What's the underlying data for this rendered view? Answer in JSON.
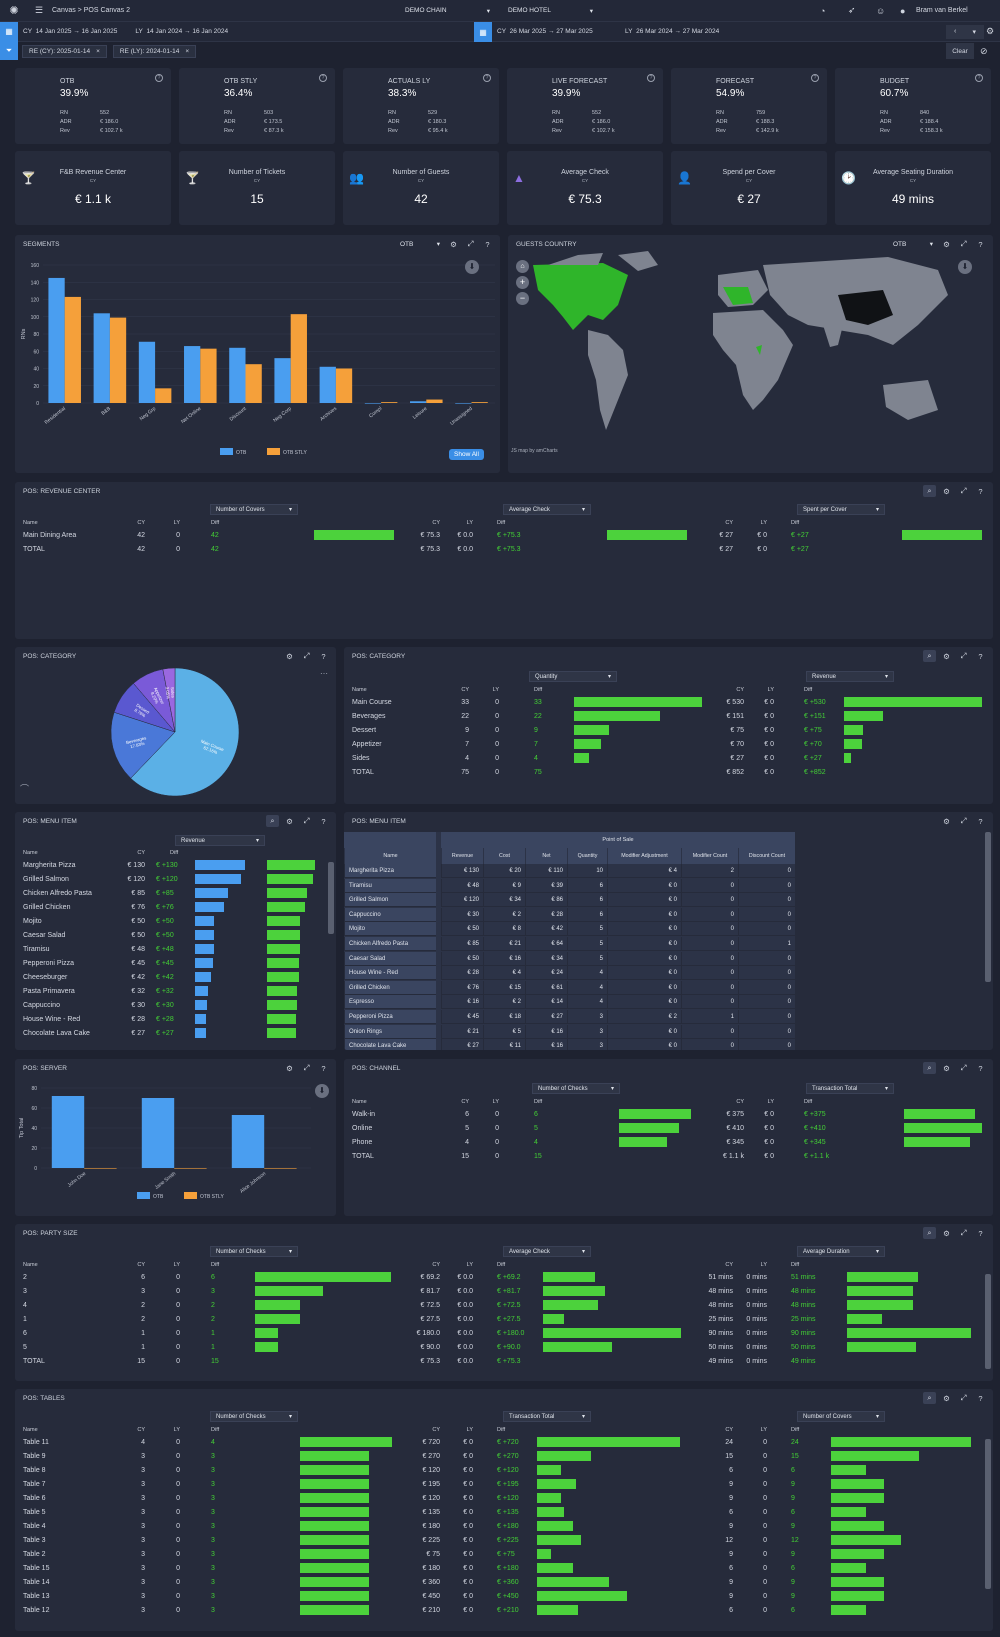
{
  "topbar": {
    "breadcrumb": "Canvas",
    "page": "POS Canvas 2",
    "chain": "DEMO CHAIN",
    "hotel": "DEMO HOTEL",
    "user": "Bram van Berkel"
  },
  "datebar": {
    "cy_label": "CY",
    "cy_range": "14 Jan 2025 → 16 Jan 2025",
    "ly_label": "LY",
    "ly_range": "14 Jan 2024 → 16 Jan 2024",
    "cy2_label": "CY",
    "cy2_range": "26 Mar 2025 → 27 Mar 2025",
    "ly2_label": "LY",
    "ly2_range": "26 Mar 2024 → 27 Mar 2024"
  },
  "filters": {
    "chip1": "RE (CY): 2025-01-14",
    "chip2": "RE (LY): 2024-01-14",
    "clear": "Clear"
  },
  "kpis": [
    {
      "title": "OTB",
      "value": "39.9%",
      "rn": "552",
      "adr": "€ 186.0",
      "rev": "€ 102.7 k"
    },
    {
      "title": "OTB STLY",
      "value": "36.4%",
      "rn": "503",
      "adr": "€ 173.5",
      "rev": "€ 87.3 k"
    },
    {
      "title": "ACTUALS LY",
      "value": "38.3%",
      "rn": "529",
      "adr": "€ 180.3",
      "rev": "€ 95.4 k"
    },
    {
      "title": "LIVE FORECAST",
      "value": "39.9%",
      "rn": "552",
      "adr": "€ 186.0",
      "rev": "€ 102.7 k"
    },
    {
      "title": "FORECAST",
      "value": "54.9%",
      "rn": "759",
      "adr": "€ 188.3",
      "rev": "€ 142.9 k"
    },
    {
      "title": "BUDGET",
      "value": "60.7%",
      "rn": "840",
      "adr": "€ 188.4",
      "rev": "€ 158.3 k"
    }
  ],
  "kpi_labels": {
    "rn": "RN",
    "adr": "ADR",
    "rev": "Rev",
    "q": "?"
  },
  "kpis2": [
    {
      "title": "F&B Revenue Center",
      "sub": "CY",
      "value": "€ 1.1 k",
      "icon": "🍸"
    },
    {
      "title": "Number of Tickets",
      "sub": "CY",
      "value": "15",
      "icon": "🍸"
    },
    {
      "title": "Number of Guests",
      "sub": "CY",
      "value": "42",
      "icon": "👥"
    },
    {
      "title": "Average Check",
      "sub": "CY",
      "value": "€ 75.3",
      "icon": "▲"
    },
    {
      "title": "Spend per Cover",
      "sub": "CY",
      "value": "€ 27",
      "icon": "👤"
    },
    {
      "title": "Average Seating Duration",
      "sub": "CY",
      "value": "49 mins",
      "icon": "🕑"
    }
  ],
  "segments": {
    "title": "SEGMENTS",
    "selector": "OTB",
    "show_all": "Show All",
    "ylabel": "RNs"
  },
  "chart_data": [
    {
      "type": "bar",
      "title": "SEGMENTS",
      "ylabel": "RNs",
      "ylim": [
        0,
        160
      ],
      "yticks": [
        0,
        20,
        40,
        60,
        80,
        100,
        120,
        140,
        160
      ],
      "categories": [
        "Residential",
        "B&B",
        "Neg Grp",
        "Net Online",
        "Discount",
        "Neg Corp",
        "Archives",
        "Compl",
        "Leisure",
        "Unassigned"
      ],
      "series": [
        {
          "name": "OTB",
          "color": "#4a9ef0",
          "values": [
            145,
            104,
            71,
            66,
            64,
            52,
            42,
            0,
            2,
            0
          ]
        },
        {
          "name": "OTB STLY",
          "color": "#f5a03a",
          "values": [
            123,
            99,
            17,
            63,
            45,
            103,
            40,
            1,
            4,
            1
          ]
        }
      ]
    },
    {
      "type": "bar",
      "title": "POS: SERVER",
      "ylabel": "Tip Total",
      "ylim": [
        0,
        80
      ],
      "yticks": [
        0,
        20,
        40,
        60,
        80
      ],
      "categories": [
        "John Doe",
        "Jane Smith",
        "Alice Johnson"
      ],
      "series": [
        {
          "name": "OTB",
          "color": "#4a9ef0",
          "values": [
            72,
            70,
            53
          ]
        },
        {
          "name": "OTB STLY",
          "color": "#f5a03a",
          "values": [
            0,
            0,
            0
          ]
        }
      ]
    },
    {
      "type": "pie",
      "title": "POS: CATEGORY",
      "slices": [
        {
          "label": "Main Course",
          "value": "62.16%",
          "v": 62.16,
          "color": "#5bb0e6"
        },
        {
          "label": "Beverages",
          "value": "17.83%",
          "v": 17.83,
          "color": "#4a78d8"
        },
        {
          "label": "Dessert",
          "value": "8.76%",
          "v": 8.76,
          "color": "#5a58d0"
        },
        {
          "label": "Appetizer",
          "value": "8.20%",
          "v": 8.2,
          "color": "#7a5ad8"
        },
        {
          "label": "Sides",
          "value": "3.05%",
          "v": 3.05,
          "color": "#9a68e0"
        }
      ]
    }
  ],
  "guests": {
    "title": "GUESTS COUNTRY",
    "selector": "OTB",
    "credit": "JS map by amCharts"
  },
  "revcenter": {
    "title": "POS: REVENUE CENTER",
    "dd1": "Number of Covers",
    "dd2": "Average Check",
    "dd3": "Spent per Cover",
    "rows": [
      {
        "name": "Main Dining Area",
        "cy": "42",
        "ly": "0",
        "diff": "42",
        "cy2": "€ 75.3",
        "ly2": "€ 0.0",
        "diff2": "€ +75.3",
        "cy3": "€ 27",
        "ly3": "€ 0",
        "diff3": "€ +27"
      },
      {
        "name": "TOTAL",
        "cy": "42",
        "ly": "0",
        "diff": "42",
        "cy2": "€ 75.3",
        "ly2": "€ 0.0",
        "diff2": "€ +75.3",
        "cy3": "€ 27",
        "ly3": "€ 0",
        "diff3": "€ +27"
      }
    ]
  },
  "cols": {
    "name": "Name",
    "cy": "CY",
    "ly": "LY",
    "diff": "Diff"
  },
  "catpie": {
    "title": "POS: CATEGORY"
  },
  "cattable": {
    "title": "POS: CATEGORY",
    "dd1": "Quantity",
    "dd2": "Revenue",
    "rows": [
      {
        "name": "Main Course",
        "cy": "33",
        "ly": "0",
        "diff": "33",
        "cy2": "€ 530",
        "ly2": "€ 0",
        "diff2": "€ +530",
        "b1": 1,
        "b2": 1
      },
      {
        "name": "Beverages",
        "cy": "22",
        "ly": "0",
        "diff": "22",
        "cy2": "€ 151",
        "ly2": "€ 0",
        "diff2": "€ +151",
        "b1": 0.67,
        "b2": 0.28
      },
      {
        "name": "Dessert",
        "cy": "9",
        "ly": "0",
        "diff": "9",
        "cy2": "€ 75",
        "ly2": "€ 0",
        "diff2": "€ +75",
        "b1": 0.27,
        "b2": 0.14
      },
      {
        "name": "Appetizer",
        "cy": "7",
        "ly": "0",
        "diff": "7",
        "cy2": "€ 70",
        "ly2": "€ 0",
        "diff2": "€ +70",
        "b1": 0.21,
        "b2": 0.13
      },
      {
        "name": "Sides",
        "cy": "4",
        "ly": "0",
        "diff": "4",
        "cy2": "€ 27",
        "ly2": "€ 0",
        "diff2": "€ +27",
        "b1": 0.12,
        "b2": 0.05
      },
      {
        "name": "TOTAL",
        "cy": "75",
        "ly": "0",
        "diff": "75",
        "cy2": "€ 852",
        "ly2": "€ 0",
        "diff2": "€ +852",
        "b1": 0,
        "b2": 0
      }
    ]
  },
  "menuitem": {
    "title": "POS: MENU ITEM",
    "dd": "Revenue",
    "rows": [
      {
        "name": "Margherita Pizza",
        "cy": "€ 130",
        "diff": "€ +130",
        "b": 1
      },
      {
        "name": "Grilled Salmon",
        "cy": "€ 120",
        "diff": "€ +120",
        "b": 0.92
      },
      {
        "name": "Chicken Alfredo Pasta",
        "cy": "€ 85",
        "diff": "€ +85",
        "b": 0.65
      },
      {
        "name": "Grilled Chicken",
        "cy": "€ 76",
        "diff": "€ +76",
        "b": 0.58
      },
      {
        "name": "Mojito",
        "cy": "€ 50",
        "diff": "€ +50",
        "b": 0.38
      },
      {
        "name": "Caesar Salad",
        "cy": "€ 50",
        "diff": "€ +50",
        "b": 0.38
      },
      {
        "name": "Tiramisu",
        "cy": "€ 48",
        "diff": "€ +48",
        "b": 0.37
      },
      {
        "name": "Pepperoni Pizza",
        "cy": "€ 45",
        "diff": "€ +45",
        "b": 0.35
      },
      {
        "name": "Cheeseburger",
        "cy": "€ 42",
        "diff": "€ +42",
        "b": 0.32
      },
      {
        "name": "Pasta Primavera",
        "cy": "€ 32",
        "diff": "€ +32",
        "b": 0.25
      },
      {
        "name": "Cappuccino",
        "cy": "€ 30",
        "diff": "€ +30",
        "b": 0.23
      },
      {
        "name": "House Wine - Red",
        "cy": "€ 28",
        "diff": "€ +28",
        "b": 0.22
      },
      {
        "name": "Chocolate Lava Cake",
        "cy": "€ 27",
        "diff": "€ +27",
        "b": 0.21
      }
    ]
  },
  "menupivot": {
    "title": "POS: MENU ITEM",
    "group": "Point of Sale",
    "headers": [
      "Name",
      "Revenue",
      "Cost",
      "Net",
      "Quantity",
      "Modifier Adjustment",
      "Modifier Count",
      "Discount Count"
    ],
    "rows": [
      [
        "Margherita Pizza",
        "€ 130",
        "€ 20",
        "€ 110",
        "10",
        "€ 4",
        "2",
        "0"
      ],
      [
        "Tiramisu",
        "€ 48",
        "€ 9",
        "€ 39",
        "6",
        "€ 0",
        "0",
        "0"
      ],
      [
        "Grilled Salmon",
        "€ 120",
        "€ 34",
        "€ 86",
        "6",
        "€ 0",
        "0",
        "0"
      ],
      [
        "Cappuccino",
        "€ 30",
        "€ 2",
        "€ 28",
        "6",
        "€ 0",
        "0",
        "0"
      ],
      [
        "Mojito",
        "€ 50",
        "€ 8",
        "€ 42",
        "5",
        "€ 0",
        "0",
        "0"
      ],
      [
        "Chicken Alfredo Pasta",
        "€ 85",
        "€ 21",
        "€ 64",
        "5",
        "€ 0",
        "0",
        "1"
      ],
      [
        "Caesar Salad",
        "€ 50",
        "€ 16",
        "€ 34",
        "5",
        "€ 0",
        "0",
        "0"
      ],
      [
        "House Wine - Red",
        "€ 28",
        "€ 4",
        "€ 24",
        "4",
        "€ 0",
        "0",
        "0"
      ],
      [
        "Grilled Chicken",
        "€ 76",
        "€ 15",
        "€ 61",
        "4",
        "€ 0",
        "0",
        "0"
      ],
      [
        "Espresso",
        "€ 16",
        "€ 2",
        "€ 14",
        "4",
        "€ 0",
        "0",
        "0"
      ],
      [
        "Pepperoni Pizza",
        "€ 45",
        "€ 18",
        "€ 27",
        "3",
        "€ 2",
        "1",
        "0"
      ],
      [
        "Onion Rings",
        "€ 21",
        "€ 5",
        "€ 16",
        "3",
        "€ 0",
        "0",
        "0"
      ],
      [
        "Chocolate Lava Cake",
        "€ 27",
        "€ 11",
        "€ 16",
        "3",
        "€ 0",
        "0",
        "0"
      ]
    ]
  },
  "server": {
    "title": "POS: SERVER",
    "ylabel": "Tip Total"
  },
  "channel": {
    "title": "POS: CHANNEL",
    "dd1": "Number of Checks",
    "dd2": "Transaction Total",
    "rows": [
      {
        "name": "Walk-in",
        "cy": "6",
        "ly": "0",
        "diff": "6",
        "cy2": "€ 375",
        "ly2": "€ 0",
        "diff2": "€ +375",
        "b1": 1,
        "b2": 0.91
      },
      {
        "name": "Online",
        "cy": "5",
        "ly": "0",
        "diff": "5",
        "cy2": "€ 410",
        "ly2": "€ 0",
        "diff2": "€ +410",
        "b1": 0.83,
        "b2": 1
      },
      {
        "name": "Phone",
        "cy": "4",
        "ly": "0",
        "diff": "4",
        "cy2": "€ 345",
        "ly2": "€ 0",
        "diff2": "€ +345",
        "b1": 0.67,
        "b2": 0.84
      },
      {
        "name": "TOTAL",
        "cy": "15",
        "ly": "0",
        "diff": "15",
        "cy2": "€ 1.1 k",
        "ly2": "€ 0",
        "diff2": "€ +1.1 k",
        "b1": 0,
        "b2": 0
      }
    ]
  },
  "party": {
    "title": "POS: PARTY SIZE",
    "dd1": "Number of Checks",
    "dd2": "Average Check",
    "dd3": "Average Duration",
    "rows": [
      {
        "name": "2",
        "cy": "6",
        "ly": "0",
        "diff": "6",
        "cy2": "€ 69.2",
        "ly2": "€ 0.0",
        "diff2": "€ +69.2",
        "cy3": "51 mins",
        "ly3": "0 mins",
        "diff3": "51 mins",
        "b1": 1,
        "b2": 0.38,
        "b3": 0.57
      },
      {
        "name": "3",
        "cy": "3",
        "ly": "0",
        "diff": "3",
        "cy2": "€ 81.7",
        "ly2": "€ 0.0",
        "diff2": "€ +81.7",
        "cy3": "48 mins",
        "ly3": "0 mins",
        "diff3": "48 mins",
        "b1": 0.5,
        "b2": 0.45,
        "b3": 0.53
      },
      {
        "name": "4",
        "cy": "2",
        "ly": "0",
        "diff": "2",
        "cy2": "€ 72.5",
        "ly2": "€ 0.0",
        "diff2": "€ +72.5",
        "cy3": "48 mins",
        "ly3": "0 mins",
        "diff3": "48 mins",
        "b1": 0.33,
        "b2": 0.4,
        "b3": 0.53
      },
      {
        "name": "1",
        "cy": "2",
        "ly": "0",
        "diff": "2",
        "cy2": "€ 27.5",
        "ly2": "€ 0.0",
        "diff2": "€ +27.5",
        "cy3": "25 mins",
        "ly3": "0 mins",
        "diff3": "25 mins",
        "b1": 0.33,
        "b2": 0.15,
        "b3": 0.28
      },
      {
        "name": "6",
        "cy": "1",
        "ly": "0",
        "diff": "1",
        "cy2": "€ 180.0",
        "ly2": "€ 0.0",
        "diff2": "€ +180.0",
        "cy3": "90 mins",
        "ly3": "0 mins",
        "diff3": "90 mins",
        "b1": 0.17,
        "b2": 1,
        "b3": 1
      },
      {
        "name": "5",
        "cy": "1",
        "ly": "0",
        "diff": "1",
        "cy2": "€ 90.0",
        "ly2": "€ 0.0",
        "diff2": "€ +90.0",
        "cy3": "50 mins",
        "ly3": "0 mins",
        "diff3": "50 mins",
        "b1": 0.17,
        "b2": 0.5,
        "b3": 0.56
      },
      {
        "name": "TOTAL",
        "cy": "15",
        "ly": "0",
        "diff": "15",
        "cy2": "€ 75.3",
        "ly2": "€ 0.0",
        "diff2": "€ +75.3",
        "cy3": "49 mins",
        "ly3": "0 mins",
        "diff3": "49 mins",
        "b1": 0,
        "b2": 0,
        "b3": 0
      }
    ]
  },
  "tables": {
    "title": "POS: TABLES",
    "dd1": "Number of Checks",
    "dd2": "Transaction Total",
    "dd3": "Number of Covers",
    "rows": [
      {
        "name": "Table 11",
        "cy": "4",
        "ly": "0",
        "diff": "4",
        "cy2": "€ 720",
        "ly2": "€ 0",
        "diff2": "€ +720",
        "cy3": "24",
        "ly3": "0",
        "diff3": "24",
        "b1": 1,
        "b2": 1,
        "b3": 1
      },
      {
        "name": "Table 9",
        "cy": "3",
        "ly": "0",
        "diff": "3",
        "cy2": "€ 270",
        "ly2": "€ 0",
        "diff2": "€ +270",
        "cy3": "15",
        "ly3": "0",
        "diff3": "15",
        "b1": 0.75,
        "b2": 0.38,
        "b3": 0.63
      },
      {
        "name": "Table 8",
        "cy": "3",
        "ly": "0",
        "diff": "3",
        "cy2": "€ 120",
        "ly2": "€ 0",
        "diff2": "€ +120",
        "cy3": "6",
        "ly3": "0",
        "diff3": "6",
        "b1": 0.75,
        "b2": 0.17,
        "b3": 0.25
      },
      {
        "name": "Table 7",
        "cy": "3",
        "ly": "0",
        "diff": "3",
        "cy2": "€ 195",
        "ly2": "€ 0",
        "diff2": "€ +195",
        "cy3": "9",
        "ly3": "0",
        "diff3": "9",
        "b1": 0.75,
        "b2": 0.27,
        "b3": 0.38
      },
      {
        "name": "Table 6",
        "cy": "3",
        "ly": "0",
        "diff": "3",
        "cy2": "€ 120",
        "ly2": "€ 0",
        "diff2": "€ +120",
        "cy3": "9",
        "ly3": "0",
        "diff3": "9",
        "b1": 0.75,
        "b2": 0.17,
        "b3": 0.38
      },
      {
        "name": "Table 5",
        "cy": "3",
        "ly": "0",
        "diff": "3",
        "cy2": "€ 135",
        "ly2": "€ 0",
        "diff2": "€ +135",
        "cy3": "6",
        "ly3": "0",
        "diff3": "6",
        "b1": 0.75,
        "b2": 0.19,
        "b3": 0.25
      },
      {
        "name": "Table 4",
        "cy": "3",
        "ly": "0",
        "diff": "3",
        "cy2": "€ 180",
        "ly2": "€ 0",
        "diff2": "€ +180",
        "cy3": "9",
        "ly3": "0",
        "diff3": "9",
        "b1": 0.75,
        "b2": 0.25,
        "b3": 0.38
      },
      {
        "name": "Table 3",
        "cy": "3",
        "ly": "0",
        "diff": "3",
        "cy2": "€ 225",
        "ly2": "€ 0",
        "diff2": "€ +225",
        "cy3": "12",
        "ly3": "0",
        "diff3": "12",
        "b1": 0.75,
        "b2": 0.31,
        "b3": 0.5
      },
      {
        "name": "Table 2",
        "cy": "3",
        "ly": "0",
        "diff": "3",
        "cy2": "€ 75",
        "ly2": "€ 0",
        "diff2": "€ +75",
        "cy3": "9",
        "ly3": "0",
        "diff3": "9",
        "b1": 0.75,
        "b2": 0.1,
        "b3": 0.38
      },
      {
        "name": "Table 15",
        "cy": "3",
        "ly": "0",
        "diff": "3",
        "cy2": "€ 180",
        "ly2": "€ 0",
        "diff2": "€ +180",
        "cy3": "6",
        "ly3": "0",
        "diff3": "6",
        "b1": 0.75,
        "b2": 0.25,
        "b3": 0.25
      },
      {
        "name": "Table 14",
        "cy": "3",
        "ly": "0",
        "diff": "3",
        "cy2": "€ 360",
        "ly2": "€ 0",
        "diff2": "€ +360",
        "cy3": "9",
        "ly3": "0",
        "diff3": "9",
        "b1": 0.75,
        "b2": 0.5,
        "b3": 0.38
      },
      {
        "name": "Table 13",
        "cy": "3",
        "ly": "0",
        "diff": "3",
        "cy2": "€ 450",
        "ly2": "€ 0",
        "diff2": "€ +450",
        "cy3": "9",
        "ly3": "0",
        "diff3": "9",
        "b1": 0.75,
        "b2": 0.63,
        "b3": 0.38
      },
      {
        "name": "Table 12",
        "cy": "3",
        "ly": "0",
        "diff": "3",
        "cy2": "€ 210",
        "ly2": "€ 0",
        "diff2": "€ +210",
        "cy3": "6",
        "ly3": "0",
        "diff3": "6",
        "b1": 0.75,
        "b2": 0.29,
        "b3": 0.25
      }
    ]
  }
}
